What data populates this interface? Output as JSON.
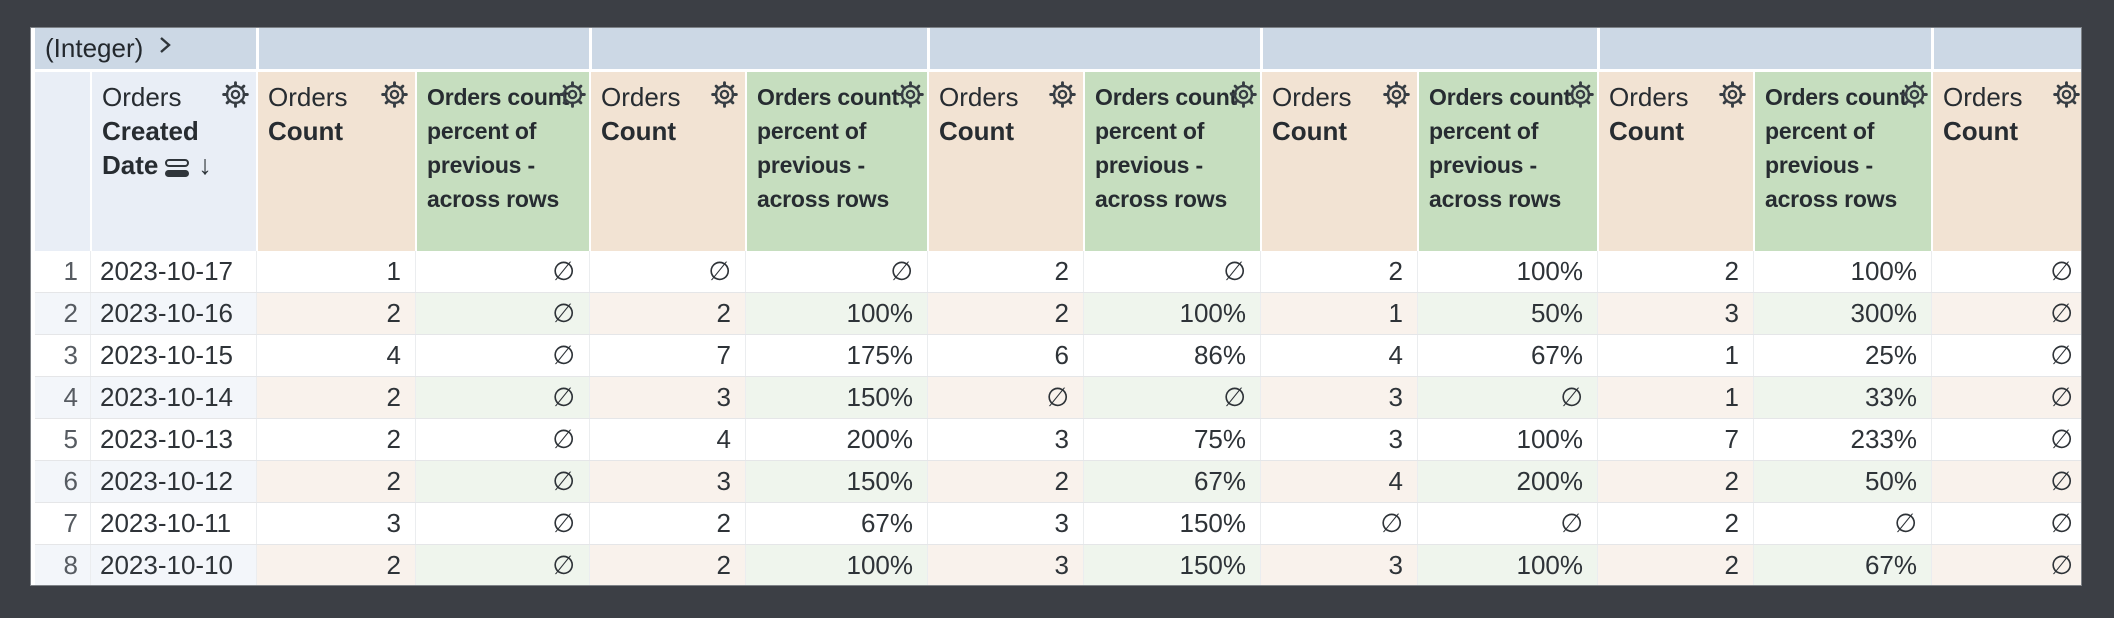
{
  "pivot_band": {
    "label": "(Integer)",
    "expand_icon": "chevron-right-icon"
  },
  "dimension_column": {
    "view_label": "Orders",
    "field_label": "Created Date",
    "sort_direction": "descending",
    "icons": [
      "row-groups-icon",
      "sort-desc-arrow-icon",
      "gear-icon"
    ]
  },
  "measure_columns": [
    {
      "kind": "count",
      "view_label": "Orders",
      "field_label": "Count"
    },
    {
      "kind": "calc",
      "label": "Orders count percent of previous - across rows"
    },
    {
      "kind": "count",
      "view_label": "Orders",
      "field_label": "Count"
    },
    {
      "kind": "calc",
      "label": "Orders count percent of previous - across rows"
    },
    {
      "kind": "count",
      "view_label": "Orders",
      "field_label": "Count"
    },
    {
      "kind": "calc",
      "label": "Orders count percent of previous - across rows"
    },
    {
      "kind": "count",
      "view_label": "Orders",
      "field_label": "Count"
    },
    {
      "kind": "calc",
      "label": "Orders count percent of previous - across rows"
    },
    {
      "kind": "count",
      "view_label": "Orders",
      "field_label": "Count"
    },
    {
      "kind": "calc",
      "label": "Orders count percent of previous - across rows"
    },
    {
      "kind": "count",
      "view_label": "Orders",
      "field_label": "Count"
    }
  ],
  "null_symbol": "∅",
  "rows": [
    {
      "index": "1",
      "date": "2023-10-17",
      "values": [
        "1",
        "∅",
        "∅",
        "∅",
        "2",
        "∅",
        "2",
        "100%",
        "2",
        "100%",
        "∅"
      ]
    },
    {
      "index": "2",
      "date": "2023-10-16",
      "values": [
        "2",
        "∅",
        "2",
        "100%",
        "2",
        "100%",
        "1",
        "50%",
        "3",
        "300%",
        "∅"
      ]
    },
    {
      "index": "3",
      "date": "2023-10-15",
      "values": [
        "4",
        "∅",
        "7",
        "175%",
        "6",
        "86%",
        "4",
        "67%",
        "1",
        "25%",
        "∅"
      ]
    },
    {
      "index": "4",
      "date": "2023-10-14",
      "values": [
        "2",
        "∅",
        "3",
        "150%",
        "∅",
        "∅",
        "3",
        "∅",
        "1",
        "33%",
        "∅"
      ]
    },
    {
      "index": "5",
      "date": "2023-10-13",
      "values": [
        "2",
        "∅",
        "4",
        "200%",
        "3",
        "75%",
        "3",
        "100%",
        "7",
        "233%",
        "∅"
      ]
    },
    {
      "index": "6",
      "date": "2023-10-12",
      "values": [
        "2",
        "∅",
        "3",
        "150%",
        "2",
        "67%",
        "4",
        "200%",
        "2",
        "50%",
        "∅"
      ]
    },
    {
      "index": "7",
      "date": "2023-10-11",
      "values": [
        "3",
        "∅",
        "2",
        "67%",
        "3",
        "150%",
        "∅",
        "∅",
        "2",
        "∅",
        "∅"
      ]
    },
    {
      "index": "8",
      "date": "2023-10-10",
      "values": [
        "2",
        "∅",
        "2",
        "100%",
        "3",
        "150%",
        "3",
        "100%",
        "2",
        "67%",
        "∅"
      ]
    }
  ],
  "colors": {
    "frame_dark": "#3c3f45",
    "pivot_band_blue": "#ccd8e5",
    "dimension_header_blue": "#e9eef6",
    "measure_header_tan": "#f2e3d3",
    "calc_header_green": "#c6debf",
    "row_tint_blue": "#f3f6fa",
    "row_tint_tan": "#f9f2ec",
    "row_tint_green": "#eff5ed",
    "text_dark": "#272c31"
  }
}
